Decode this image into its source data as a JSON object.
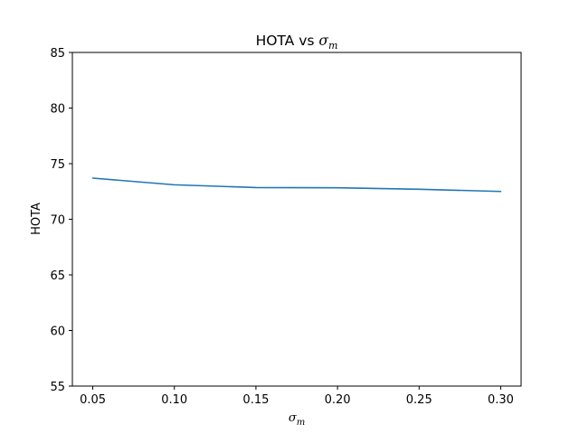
{
  "chart_data": {
    "type": "line",
    "title": "HOTA vs σm",
    "title_prefix": "HOTA vs ",
    "title_symbol": "σ",
    "title_subscript": "m",
    "xlabel": "σm",
    "xlabel_symbol": "σ",
    "xlabel_subscript": "m",
    "ylabel": "HOTA",
    "xlim": [
      0.0375,
      0.3125
    ],
    "ylim": [
      55,
      85
    ],
    "xticks": [
      0.05,
      0.1,
      0.15,
      0.2,
      0.25,
      0.3
    ],
    "xtick_labels": [
      "0.05",
      "0.10",
      "0.15",
      "0.20",
      "0.25",
      "0.30"
    ],
    "yticks": [
      55,
      60,
      65,
      70,
      75,
      80,
      85
    ],
    "ytick_labels": [
      "55",
      "60",
      "65",
      "70",
      "75",
      "80",
      "85"
    ],
    "grid": false,
    "series": [
      {
        "color": "#1f77b4",
        "x": [
          0.05,
          0.1,
          0.15,
          0.2,
          0.25,
          0.3
        ],
        "y": [
          73.7,
          73.1,
          72.85,
          72.83,
          72.7,
          72.5
        ]
      }
    ]
  }
}
